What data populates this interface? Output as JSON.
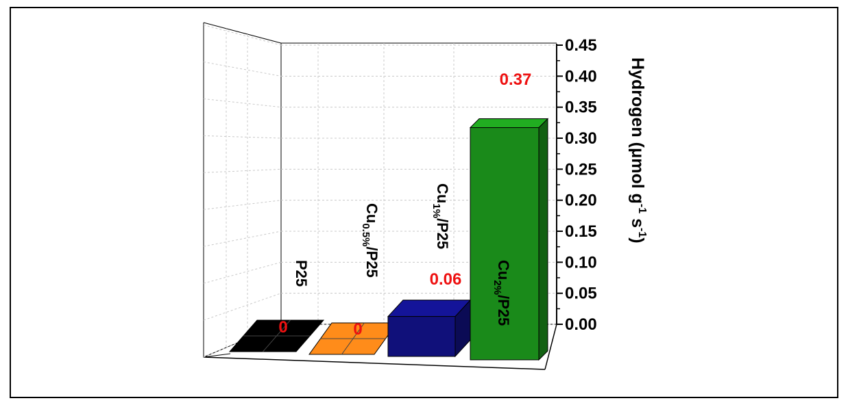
{
  "chart_data": {
    "type": "bar",
    "style": "3d",
    "categories": [
      {
        "base": "P25",
        "sub": "",
        "suffix": ""
      },
      {
        "base": "Cu",
        "sub": "0.5%",
        "suffix": "/P25"
      },
      {
        "base": "Cu",
        "sub": "1%",
        "suffix": "/P25"
      },
      {
        "base": "Cu",
        "sub": "2%",
        "suffix": "/P25"
      }
    ],
    "values": [
      0,
      0,
      0.06,
      0.37
    ],
    "value_labels": [
      "0",
      "0",
      "0.06",
      "0.37"
    ],
    "colors": [
      "#000000",
      "#ff8c1a",
      "#10107a",
      "#1a8a1a"
    ],
    "value_label_color": "#ee1111",
    "ylim": [
      0,
      0.45
    ],
    "yticks": [
      "0.00",
      "0.05",
      "0.10",
      "0.15",
      "0.20",
      "0.25",
      "0.30",
      "0.35",
      "0.40",
      "0.45"
    ],
    "ylabel": {
      "parts": [
        {
          "text": "Hydrogen (",
          "sup": false
        },
        {
          "text": "μ",
          "sup": false
        },
        {
          "text": "mol g",
          "sup": false
        },
        {
          "text": "-1",
          "sup": true
        },
        {
          "text": " s",
          "sup": false
        },
        {
          "text": "-1",
          "sup": true
        },
        {
          "text": ")",
          "sup": false
        }
      ]
    },
    "xlabel": "",
    "title": "",
    "grid": true,
    "axis_side": "right"
  }
}
